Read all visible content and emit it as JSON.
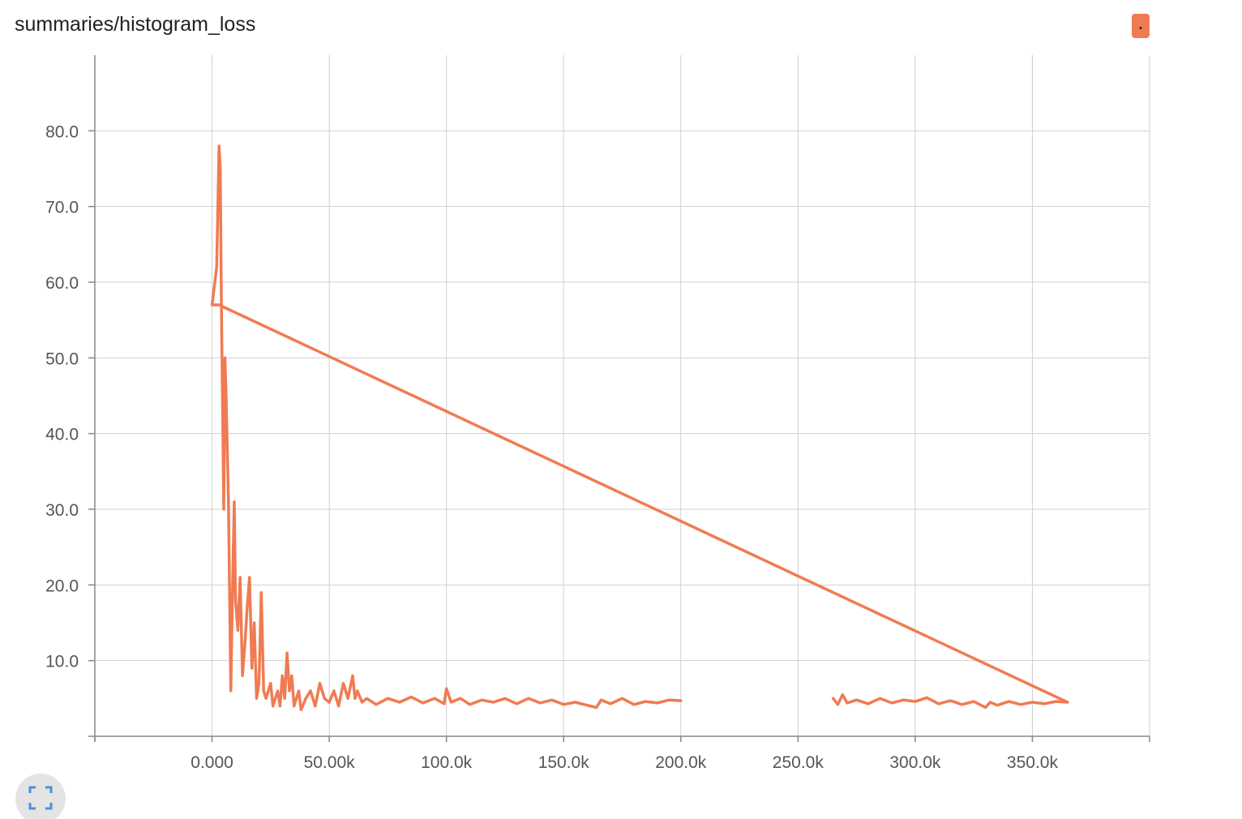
{
  "card": {
    "title": "summaries/histogram_loss",
    "legend_chip_text": "."
  },
  "colors": {
    "series": "#f07b52",
    "grid": "#d0d0d0",
    "axis": "#888888",
    "tick_text": "#555555",
    "fullscreen_icon": "#4a90e2"
  },
  "icons": {
    "fullscreen": "fullscreen-icon"
  },
  "chart_data": {
    "type": "line",
    "title": "summaries/histogram_loss",
    "xlabel": "",
    "ylabel": "",
    "xlim": [
      -50000,
      400000
    ],
    "ylim": [
      0,
      90
    ],
    "x_ticks": [
      0,
      50000,
      100000,
      150000,
      200000,
      250000,
      300000,
      350000
    ],
    "x_tick_labels": [
      "0.000",
      "50.00k",
      "100.0k",
      "150.0k",
      "200.0k",
      "250.0k",
      "300.0k",
      "350.0k"
    ],
    "y_ticks": [
      10,
      20,
      30,
      40,
      50,
      60,
      70,
      80
    ],
    "y_tick_labels": [
      "10.0",
      "20.0",
      "30.0",
      "40.0",
      "50.0",
      "60.0",
      "70.0",
      "80.0"
    ],
    "grid": true,
    "series": [
      {
        "points": [
          [
            0,
            57
          ],
          [
            2000,
            62
          ],
          [
            3000,
            78
          ],
          [
            3500,
            75
          ],
          [
            4000,
            57
          ],
          [
            5000,
            30
          ],
          [
            5500,
            50
          ],
          [
            6000,
            45
          ],
          [
            7000,
            31
          ],
          [
            8000,
            6
          ],
          [
            9000,
            24
          ],
          [
            9500,
            31
          ],
          [
            10000,
            18
          ],
          [
            11000,
            14
          ],
          [
            12000,
            21
          ],
          [
            13000,
            8
          ],
          [
            14000,
            12
          ],
          [
            15000,
            17
          ],
          [
            16000,
            21
          ],
          [
            17000,
            9
          ],
          [
            18000,
            15
          ],
          [
            19000,
            5
          ],
          [
            20000,
            7
          ],
          [
            21000,
            19
          ],
          [
            22000,
            6
          ],
          [
            23000,
            5
          ],
          [
            25000,
            7
          ],
          [
            26000,
            4
          ],
          [
            27000,
            5
          ],
          [
            28000,
            6
          ],
          [
            29000,
            4
          ],
          [
            30000,
            8
          ],
          [
            31000,
            5
          ],
          [
            32000,
            11
          ],
          [
            33000,
            6
          ],
          [
            34000,
            8
          ],
          [
            35000,
            4
          ],
          [
            36000,
            5
          ],
          [
            37000,
            6
          ],
          [
            38000,
            3.5
          ],
          [
            40000,
            5
          ],
          [
            42000,
            6
          ],
          [
            44000,
            4
          ],
          [
            46000,
            7
          ],
          [
            48000,
            5
          ],
          [
            50000,
            4.5
          ],
          [
            52000,
            6
          ],
          [
            54000,
            4
          ],
          [
            56000,
            7
          ],
          [
            58000,
            5
          ],
          [
            60000,
            8
          ],
          [
            61000,
            5
          ],
          [
            62000,
            6
          ],
          [
            64000,
            4.5
          ],
          [
            66000,
            5
          ],
          [
            70000,
            4.2
          ],
          [
            75000,
            5
          ],
          [
            80000,
            4.5
          ],
          [
            85000,
            5.2
          ],
          [
            90000,
            4.4
          ],
          [
            95000,
            5
          ],
          [
            99000,
            4.3
          ],
          [
            100000,
            6.3
          ],
          [
            102000,
            4.5
          ],
          [
            106000,
            5
          ],
          [
            110000,
            4.2
          ],
          [
            115000,
            4.8
          ],
          [
            120000,
            4.5
          ],
          [
            125000,
            5
          ],
          [
            130000,
            4.3
          ],
          [
            135000,
            5
          ],
          [
            140000,
            4.4
          ],
          [
            145000,
            4.8
          ],
          [
            150000,
            4.2
          ],
          [
            155000,
            4.5
          ],
          [
            160000,
            4.1
          ],
          [
            164000,
            3.8
          ],
          [
            166000,
            4.8
          ],
          [
            170000,
            4.3
          ],
          [
            175000,
            5
          ],
          [
            180000,
            4.2
          ],
          [
            185000,
            4.6
          ],
          [
            190000,
            4.4
          ],
          [
            195000,
            4.8
          ],
          [
            200000,
            4.7
          ],
          [
            null,
            null
          ],
          [
            265000,
            5
          ],
          [
            267000,
            4.2
          ],
          [
            269000,
            5.5
          ],
          [
            271000,
            4.4
          ],
          [
            275000,
            4.8
          ],
          [
            280000,
            4.3
          ],
          [
            285000,
            5
          ],
          [
            290000,
            4.4
          ],
          [
            295000,
            4.8
          ],
          [
            300000,
            4.6
          ],
          [
            305000,
            5.1
          ],
          [
            310000,
            4.3
          ],
          [
            315000,
            4.7
          ],
          [
            320000,
            4.2
          ],
          [
            325000,
            4.6
          ],
          [
            330000,
            3.8
          ],
          [
            332000,
            4.5
          ],
          [
            335000,
            4.1
          ],
          [
            340000,
            4.6
          ],
          [
            345000,
            4.2
          ],
          [
            350000,
            4.5
          ],
          [
            355000,
            4.3
          ],
          [
            360000,
            4.6
          ],
          [
            365000,
            4.5
          ],
          [
            3000,
            57
          ],
          [
            0,
            57
          ]
        ]
      }
    ]
  }
}
